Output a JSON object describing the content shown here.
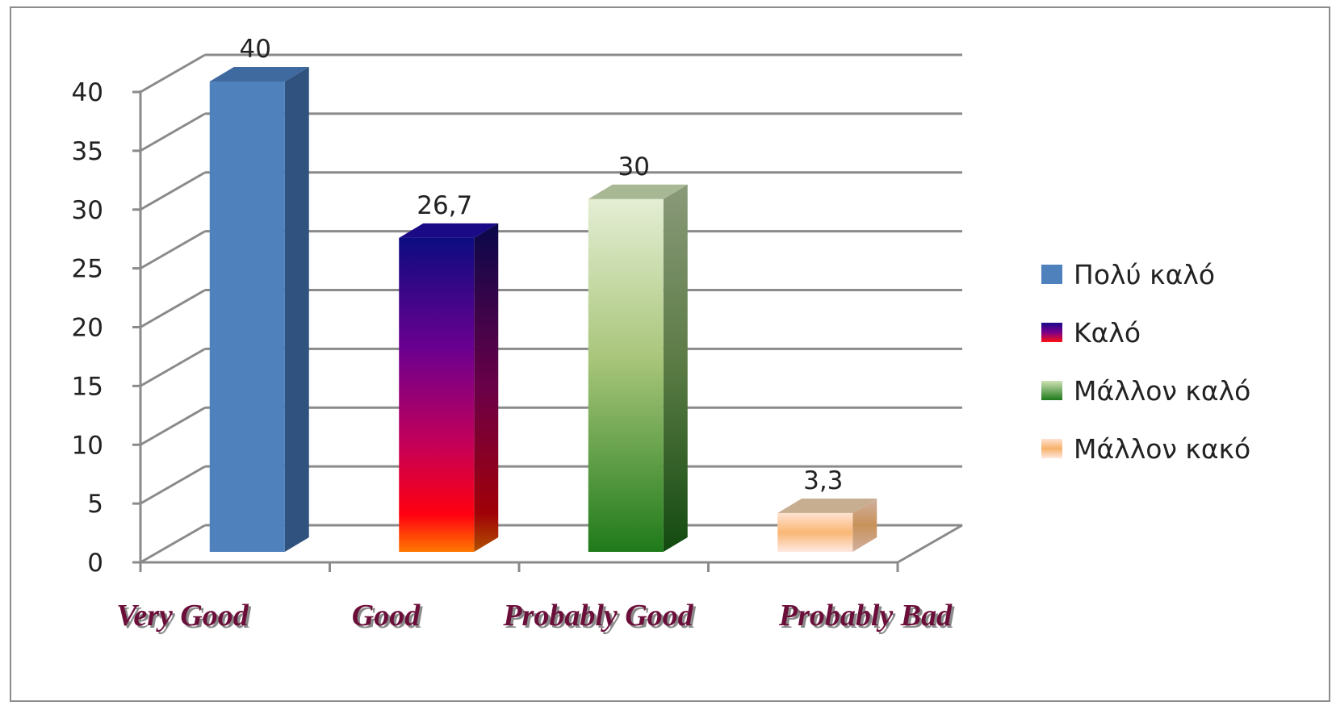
{
  "chart_data": {
    "type": "bar",
    "title": "",
    "xlabel": "",
    "ylabel": "",
    "categories": [
      "Very Good",
      "Good",
      "Probably Good",
      "Probably Bad"
    ],
    "values": [
      40,
      26.7,
      30,
      3.3
    ],
    "data_labels": [
      "40",
      "26,7",
      "30",
      "3,3"
    ],
    "ylim": [
      0,
      40
    ],
    "yticks": [
      0,
      5,
      10,
      15,
      20,
      25,
      30,
      35,
      40
    ],
    "grid": true,
    "legend": {
      "position": "right",
      "entries": [
        "Πολύ καλό",
        "Καλό",
        "Μάλλον καλό",
        "Μάλλον κακό"
      ]
    },
    "colors": [
      "#4f81bd",
      "#5a0c96",
      "#5e9e3c",
      "#f7c08e"
    ]
  }
}
